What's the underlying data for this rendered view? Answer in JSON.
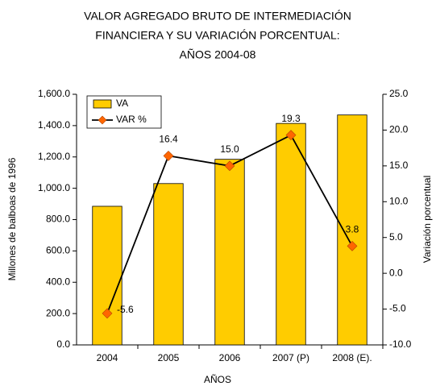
{
  "chart_data": {
    "type": "bar",
    "title": [
      "VALOR AGREGADO BRUTO DE INTERMEDIACIÓN",
      "FINANCIERA Y SU VARIACIÓN PORCENTUAL:",
      "AÑOS 2004-08"
    ],
    "x_label": "AÑOS",
    "y_label": "Millones de balboas de 1996",
    "y2_label": "Variación porcentual",
    "categories": [
      "2004",
      "2005",
      "2006",
      "2007 (P)",
      "2008 (E)."
    ],
    "series": [
      {
        "name": "VA",
        "type": "bar",
        "color": "#FFCC00",
        "values": [
          885,
          1030,
          1185,
          1414,
          1468
        ]
      },
      {
        "name": "VAR %",
        "type": "line",
        "axis": "y2",
        "color": "#FF6600",
        "line_color": "#000000",
        "values": [
          -5.6,
          16.4,
          15.0,
          19.3,
          3.8
        ],
        "value_labels": [
          "-5.6",
          "16.4",
          "15.0",
          "19.3",
          "3.8"
        ]
      }
    ],
    "ylim": [
      0,
      1600
    ],
    "yticks": [
      {
        "value": 0,
        "label": "0.0"
      },
      {
        "value": 200,
        "label": "200.0"
      },
      {
        "value": 400,
        "label": "400.0"
      },
      {
        "value": 600,
        "label": "600.0"
      },
      {
        "value": 800,
        "label": "800.0"
      },
      {
        "value": 1000,
        "label": "1,000.0"
      },
      {
        "value": 1200,
        "label": "1,200.0"
      },
      {
        "value": 1400,
        "label": "1,400.0"
      },
      {
        "value": 1600,
        "label": "1,600.0"
      }
    ],
    "y2lim": [
      -10,
      25
    ],
    "y2ticks": [
      {
        "value": -10,
        "label": "-10.0"
      },
      {
        "value": -5,
        "label": "-5.0"
      },
      {
        "value": 0,
        "label": "0.0"
      },
      {
        "value": 5,
        "label": "5.0"
      },
      {
        "value": 10,
        "label": "10.0"
      },
      {
        "value": 15,
        "label": "15.0"
      },
      {
        "value": 20,
        "label": "20.0"
      },
      {
        "value": 25,
        "label": "25.0"
      }
    ],
    "legend": "upper left",
    "grid": false
  }
}
